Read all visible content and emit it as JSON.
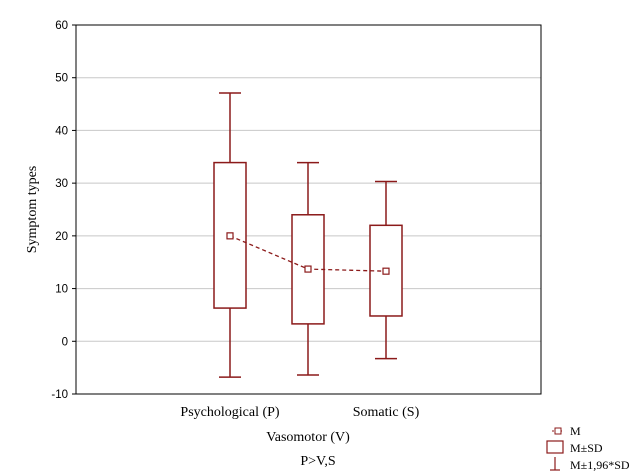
{
  "chart_data": {
    "type": "boxplot",
    "ylabel": "Symptom types",
    "ylim": [
      -10,
      60
    ],
    "yticks": [
      -10,
      0,
      10,
      20,
      30,
      40,
      50,
      60
    ],
    "grid": true,
    "categories": [
      "Psychological (P)",
      "Vasomotor (V)",
      "Somatic (S)"
    ],
    "series": [
      {
        "category": "Psychological (P)",
        "mean": 20,
        "sd_low": 6.3,
        "sd_high": 33.9,
        "ci_low": -6.8,
        "ci_high": 47.1
      },
      {
        "category": "Vasomotor (V)",
        "mean": 13.7,
        "sd_low": 3.3,
        "sd_high": 24.0,
        "ci_low": -6.4,
        "ci_high": 33.9
      },
      {
        "category": "Somatic (S)",
        "mean": 13.3,
        "sd_low": 4.8,
        "sd_high": 22.0,
        "ci_low": -3.3,
        "ci_high": 30.3
      }
    ],
    "legend": {
      "placement": "bottom-right",
      "items": [
        "M",
        "M±SD",
        "M±1,96*SD"
      ]
    },
    "note": "P>V,S",
    "colors": {
      "box": "#8b1a1a",
      "grid": "#c8c8c8"
    }
  }
}
